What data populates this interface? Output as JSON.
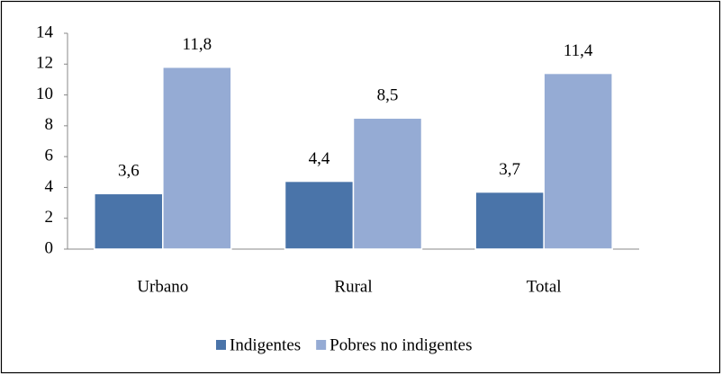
{
  "chart_data": {
    "type": "bar",
    "categories": [
      "Urbano",
      "Rural",
      "Total"
    ],
    "series": [
      {
        "name": "Indigentes",
        "color": "#4a74a9",
        "values": [
          3.6,
          4.4,
          3.7
        ],
        "value_labels": [
          "3,6",
          "4,4",
          "3,7"
        ]
      },
      {
        "name": "Pobres no indigentes",
        "color": "#95abd4",
        "values": [
          11.8,
          8.5,
          11.4
        ],
        "value_labels": [
          "11,8",
          "8,5",
          "11,4"
        ]
      }
    ],
    "ylim": [
      0,
      14
    ],
    "yticks": [
      0,
      2,
      4,
      6,
      8,
      10,
      12,
      14
    ],
    "grid": false,
    "legend": "bottom"
  }
}
